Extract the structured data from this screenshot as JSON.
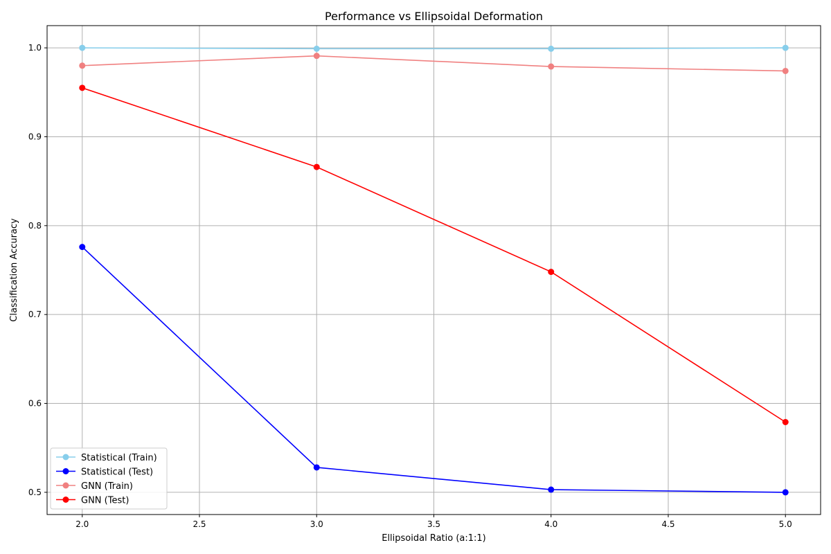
{
  "chart_data": {
    "type": "line",
    "title": "Performance vs Ellipsoidal Deformation",
    "xlabel": "Ellipsoidal Ratio (a:1:1)",
    "ylabel": "Classification Accuracy",
    "x": [
      2.0,
      3.0,
      4.0,
      5.0
    ],
    "xlim": [
      1.85,
      5.15
    ],
    "ylim": [
      0.475,
      1.025
    ],
    "xticks": [
      "2.0",
      "2.5",
      "3.0",
      "3.5",
      "4.0",
      "4.5",
      "5.0"
    ],
    "yticks": [
      "0.5",
      "0.6",
      "0.7",
      "0.8",
      "0.9",
      "1.0"
    ],
    "grid": true,
    "legend_position": "lower-left",
    "series": [
      {
        "name": "Statistical (Train)",
        "color": "#87ceeb",
        "values": [
          1.0,
          0.999,
          0.999,
          1.0
        ]
      },
      {
        "name": "Statistical (Test)",
        "color": "#0000ff",
        "values": [
          0.776,
          0.528,
          0.503,
          0.5
        ]
      },
      {
        "name": "GNN (Train)",
        "color": "#f08080",
        "values": [
          0.98,
          0.991,
          0.979,
          0.974
        ]
      },
      {
        "name": "GNN (Test)",
        "color": "#ff0000",
        "values": [
          0.955,
          0.866,
          0.748,
          0.579
        ]
      }
    ]
  }
}
